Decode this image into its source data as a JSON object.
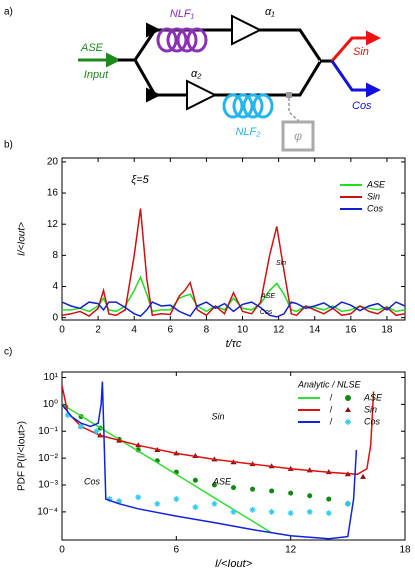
{
  "diagram": {
    "panel_label": "a)",
    "nlf1": "NLF₁",
    "alpha1": "α₁",
    "alpha2": "α₂",
    "nlf2": "NLF₂",
    "ase": "ASE",
    "input": "Input",
    "sin": "Sin",
    "cos": "Cos",
    "phi": "φ"
  },
  "chart_data": [
    {
      "type": "line",
      "panel_label": "b)",
      "xlabel": "t/τc",
      "ylabel": "I/<Iout>",
      "annotations": [
        "ξ=5",
        "Sin",
        "ASE",
        "Cos"
      ],
      "legend": "upper right",
      "xlim": [
        0,
        19
      ],
      "xticks": [
        0,
        2,
        4,
        6,
        8,
        10,
        12,
        14,
        16,
        18
      ],
      "ylim": [
        -0.3,
        20.5
      ],
      "yticks": [
        0,
        4,
        8,
        12,
        16,
        20
      ],
      "x": [
        0,
        0.5,
        1,
        1.5,
        2,
        2.3,
        2.6,
        3,
        3.5,
        4,
        4.35,
        4.7,
        5,
        5.5,
        6,
        6.5,
        6.8,
        7.1,
        7.5,
        8,
        8.5,
        9,
        9.5,
        10,
        10.5,
        11,
        11.5,
        11.9,
        12.3,
        12.7,
        13,
        13.5,
        14,
        14.5,
        15,
        15.5,
        16,
        16.5,
        17,
        17.5,
        18,
        18.5,
        19
      ],
      "series": [
        {
          "name": "ASE",
          "color": "#22dd22",
          "values": [
            1,
            1,
            1.2,
            0.8,
            1.5,
            2.5,
            1,
            0.8,
            1.5,
            3.5,
            5.2,
            3,
            0.8,
            1,
            1,
            2.5,
            2.8,
            3,
            1.5,
            0.8,
            1.5,
            1,
            2.5,
            1.2,
            1,
            1.8,
            3.5,
            4.4,
            3,
            1,
            0.8,
            1.5,
            1.3,
            1,
            1.5,
            0.8,
            1,
            1.5,
            1.2,
            1,
            1.4,
            0.8,
            1
          ]
        },
        {
          "name": "Sin",
          "color": "#cc1111",
          "values": [
            0.3,
            0.5,
            0.8,
            0.2,
            1.2,
            3.5,
            0.5,
            0.3,
            1,
            8,
            14,
            5,
            0.3,
            0.5,
            0.4,
            2.8,
            3.5,
            4.5,
            1,
            0.3,
            1.5,
            0.5,
            3.2,
            0.8,
            0.5,
            2,
            8,
            11.7,
            6,
            0.5,
            0.3,
            1.5,
            1,
            0.5,
            1.2,
            0.3,
            0.5,
            1.5,
            0.8,
            0.5,
            1.3,
            0.3,
            0.5
          ]
        },
        {
          "name": "Cos",
          "color": "#1122cc",
          "values": [
            2,
            1.5,
            1.2,
            2,
            1.8,
            1,
            2,
            2,
            1.3,
            0.5,
            0.2,
            1,
            2,
            1.5,
            1.6,
            0.8,
            0.5,
            0.2,
            1.5,
            2,
            1.2,
            1.8,
            0.8,
            1.7,
            2,
            1.3,
            0.3,
            0.1,
            0.5,
            2,
            1.8,
            1.2,
            1.5,
            1.9,
            1.2,
            2,
            1.6,
            0.9,
            1.5,
            1.8,
            1,
            2,
            1.5
          ]
        }
      ]
    },
    {
      "type": "line",
      "panel_label": "c)",
      "xlabel": "I/<Iout>",
      "ylabel": "PDF P(I/<Iout>)",
      "log_y": true,
      "annotations": [
        "Sin",
        "ASE",
        "Cos"
      ],
      "legend": "upper right",
      "legend_title": "Analytic  / NLSE",
      "xlim": [
        0,
        18
      ],
      "xticks": [
        0,
        6,
        12,
        18
      ],
      "ylim": [
        9e-06,
        16
      ],
      "yticks": [
        {
          "value": 10,
          "label": "10¹"
        },
        {
          "value": 1,
          "label": "10⁰"
        },
        {
          "value": 0.1,
          "label": "10⁻¹"
        },
        {
          "value": 0.01,
          "label": "10⁻²"
        },
        {
          "value": 0.001,
          "label": "10⁻³"
        },
        {
          "value": 0.0001,
          "label": "10⁻⁴"
        }
      ],
      "series": [
        {
          "name": "ASE",
          "color": "#33dd33",
          "x": [
            0,
            1,
            2,
            3,
            4,
            5,
            6,
            7,
            8,
            9,
            10,
            11
          ],
          "values": [
            1,
            0.368,
            0.135,
            0.0498,
            0.0183,
            0.00674,
            0.00248,
            0.000912,
            0.000335,
            0.000123,
            4.54e-05,
            1.67e-05
          ],
          "nlse": {
            "color": "#118811",
            "marker": "circle",
            "x": [
              0.2,
              1,
              2,
              3,
              4,
              5,
              6,
              7,
              8,
              9,
              10,
              11,
              12,
              13,
              14,
              15
            ],
            "values": [
              0.8,
              0.35,
              0.13,
              0.05,
              0.02,
              0.008,
              0.003,
              0.0015,
              0.001,
              0.0008,
              0.0007,
              0.0006,
              0.0005,
              0.0004,
              0.0003,
              0.0002
            ]
          }
        },
        {
          "name": "Sin",
          "color": "#dd1111",
          "x": [
            0,
            0.3,
            1,
            2,
            4,
            6,
            8,
            10,
            12,
            14,
            15.5,
            16,
            16.2,
            16.35
          ],
          "values": [
            5,
            0.5,
            0.15,
            0.07,
            0.03,
            0.015,
            0.009,
            0.006,
            0.004,
            0.003,
            0.0025,
            0.004,
            0.03,
            3
          ],
          "nlse": {
            "color": "#881111",
            "marker": "triangle",
            "x": [
              1,
              2,
              3,
              4,
              5,
              6,
              7,
              8,
              9,
              10,
              11,
              12,
              13,
              14,
              15,
              15.8
            ],
            "values": [
              0.15,
              0.07,
              0.045,
              0.03,
              0.02,
              0.015,
              0.012,
              0.009,
              0.007,
              0.006,
              0.005,
              0.004,
              0.0035,
              0.003,
              0.0025,
              0.002
            ]
          }
        },
        {
          "name": "Cos",
          "color": "#1122dd",
          "x": [
            0,
            0.5,
            1,
            1.5,
            1.9,
            2.05,
            2.12,
            2.3,
            3,
            4,
            6,
            8,
            10,
            12,
            14,
            15,
            15.3,
            15.45
          ],
          "values": [
            1,
            0.35,
            0.2,
            0.15,
            0.2,
            1,
            7,
            0.0003,
            0.0002,
            0.00013,
            7e-05,
            4e-05,
            2.2e-05,
            1.3e-05,
            1e-05,
            1.2e-05,
            0.0003,
            0.02
          ],
          "nlse": {
            "color": "#33ccee",
            "marker": "star",
            "x": [
              0.3,
              1,
              1.8,
              2.5,
              3,
              4,
              5,
              6,
              7,
              8,
              9,
              10,
              11,
              12,
              13,
              14,
              15
            ],
            "values": [
              0.4,
              0.15,
              0.1,
              0.0003,
              0.00025,
              0.00035,
              0.0002,
              0.0003,
              0.00015,
              0.0002,
              0.0001,
              0.00012,
              0.0001,
              9e-05,
              0.0001,
              9e-05,
              0.0002
            ]
          }
        }
      ]
    }
  ]
}
